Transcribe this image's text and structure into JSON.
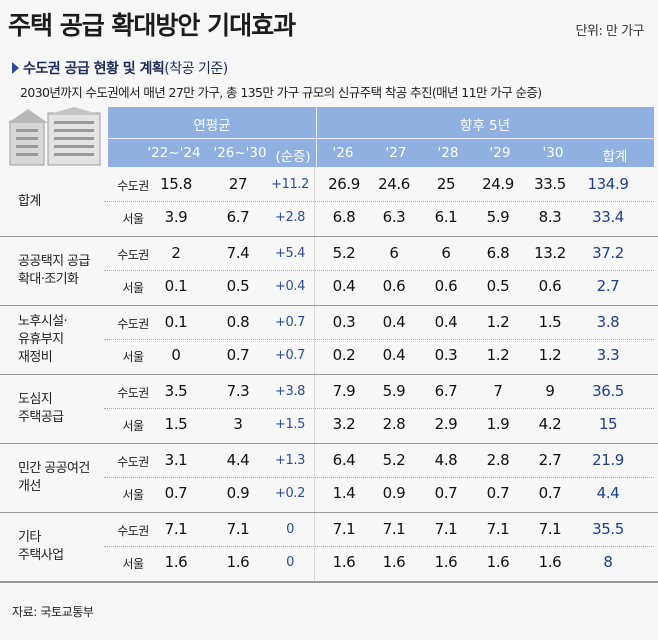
{
  "title": "주택 공급 확대방안 기대효과",
  "unit": "단위: 만 가구",
  "subtitle": "수도권 공급 현황 및 계획",
  "subtitle_paren": "(착공 기준)",
  "description": "2030년까지 수도권에서 매년 27만 가구, 총 135만 가구 규모의 신규주택 착공 추진(매년 11만 가구 순증)",
  "header": {
    "group_avg": "연평균",
    "group_next5": "향후 5년",
    "cols": [
      "'22~'24",
      "'26~'30",
      "(순증)",
      "'26",
      "'27",
      "'28",
      "'29",
      "'30",
      "합계"
    ]
  },
  "rows": [
    {
      "category": [
        "합계"
      ],
      "region1": "수도권",
      "vals1": [
        "15.8",
        "27",
        "+11.2",
        "26.9",
        "24.6",
        "25",
        "24.9",
        "33.5",
        "134.9"
      ],
      "region2": "서울",
      "vals2": [
        "3.9",
        "6.7",
        "+2.8",
        "6.8",
        "6.3",
        "6.1",
        "5.9",
        "8.3",
        "33.4"
      ]
    },
    {
      "category": [
        "공공택지 공급",
        "확대·조기화"
      ],
      "region1": "수도권",
      "vals1": [
        "2",
        "7.4",
        "+5.4",
        "5.2",
        "6",
        "6",
        "6.8",
        "13.2",
        "37.2"
      ],
      "region2": "서울",
      "vals2": [
        "0.1",
        "0.5",
        "+0.4",
        "0.4",
        "0.6",
        "0.6",
        "0.5",
        "0.6",
        "2.7"
      ]
    },
    {
      "category": [
        "노후시설·",
        "유휴부지",
        "재정비"
      ],
      "region1": "수도권",
      "vals1": [
        "0.1",
        "0.8",
        "+0.7",
        "0.3",
        "0.4",
        "0.4",
        "1.2",
        "1.5",
        "3.8"
      ],
      "region2": "서울",
      "vals2": [
        "0",
        "0.7",
        "+0.7",
        "0.2",
        "0.4",
        "0.3",
        "1.2",
        "1.2",
        "3.3"
      ]
    },
    {
      "category": [
        "도심지",
        "주택공급"
      ],
      "region1": "수도권",
      "vals1": [
        "3.5",
        "7.3",
        "+3.8",
        "7.9",
        "5.9",
        "6.7",
        "7",
        "9",
        "36.5"
      ],
      "region2": "서울",
      "vals2": [
        "1.5",
        "3",
        "+1.5",
        "3.2",
        "2.8",
        "2.9",
        "1.9",
        "4.2",
        "15"
      ]
    },
    {
      "category": [
        "민간 공공여건",
        "개선"
      ],
      "region1": "수도권",
      "vals1": [
        "3.1",
        "4.4",
        "+1.3",
        "6.4",
        "5.2",
        "4.8",
        "2.8",
        "2.7",
        "21.9"
      ],
      "region2": "서울",
      "vals2": [
        "0.7",
        "0.9",
        "+0.2",
        "1.4",
        "0.9",
        "0.7",
        "0.7",
        "0.7",
        "4.4"
      ]
    },
    {
      "category": [
        "기타",
        "주택사업"
      ],
      "region1": "수도권",
      "vals1": [
        "7.1",
        "7.1",
        "0",
        "7.1",
        "7.1",
        "7.1",
        "7.1",
        "7.1",
        "35.5"
      ],
      "region2": "서울",
      "vals2": [
        "1.6",
        "1.6",
        "0",
        "1.6",
        "1.6",
        "1.6",
        "1.6",
        "1.6",
        "8"
      ]
    }
  ],
  "source": "자료: 국토교통부",
  "colors": {
    "header": "#8fb0e0",
    "accent": "#2c4f98"
  }
}
